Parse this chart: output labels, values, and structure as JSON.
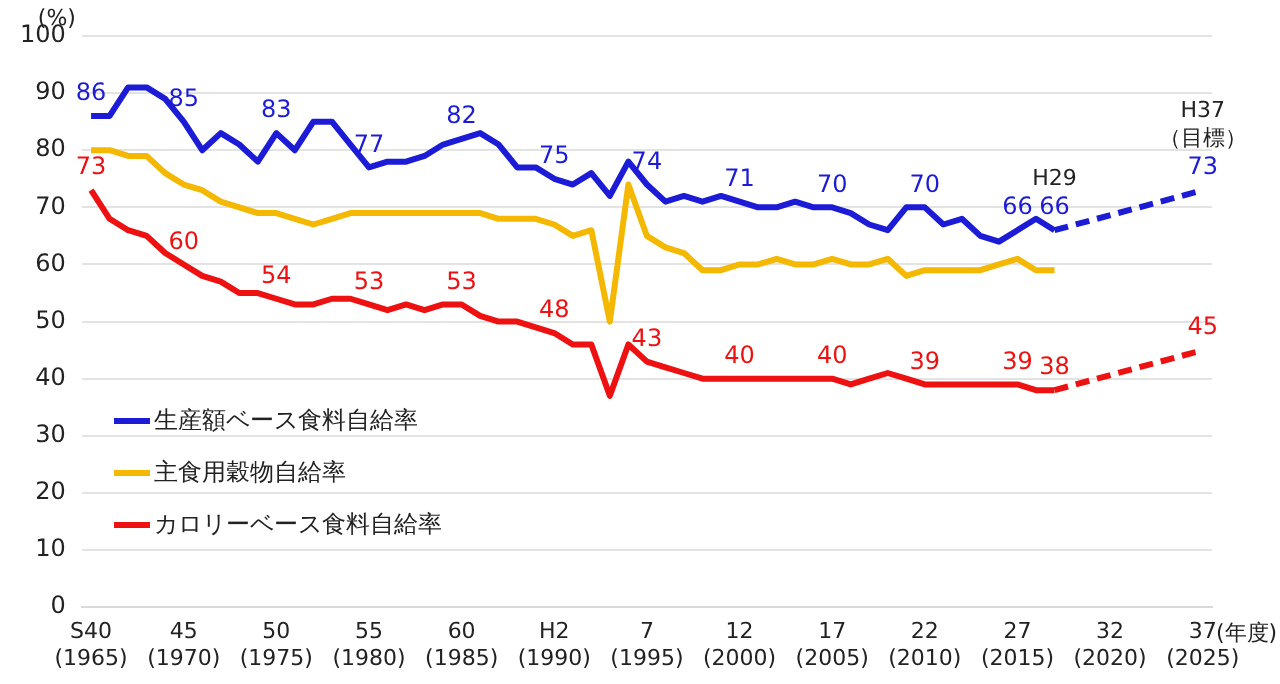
{
  "chart_data": {
    "type": "line",
    "ylabel": "(%)",
    "xlabel": "(年度)",
    "categories": [
      "S40\n(1965)",
      null,
      null,
      null,
      null,
      "45\n(1970)",
      null,
      null,
      null,
      null,
      "50\n(1975)",
      null,
      null,
      null,
      null,
      "55\n(1980)",
      null,
      null,
      null,
      null,
      "60\n(1985)",
      null,
      null,
      null,
      null,
      "H2\n(1990)",
      null,
      null,
      null,
      null,
      "7\n(1995)",
      null,
      null,
      null,
      null,
      "12\n(2000)",
      null,
      null,
      null,
      null,
      "17\n(2005)",
      null,
      null,
      null,
      null,
      "22\n(2010)",
      null,
      null,
      null,
      null,
      "27\n(2015)",
      null,
      null,
      null,
      null,
      "32\n(2020)",
      null,
      null,
      null,
      null,
      "37\n(2025)"
    ],
    "series": [
      {
        "name": "生産額ベース食料自給率",
        "color": "#1c1cd6",
        "values": [
          86,
          86,
          91,
          91,
          89,
          85,
          80,
          83,
          81,
          78,
          83,
          80,
          85,
          85,
          81,
          77,
          78,
          78,
          79,
          81,
          82,
          83,
          81,
          77,
          77,
          75,
          74,
          76,
          72,
          78,
          74,
          71,
          72,
          71,
          72,
          71,
          70,
          70,
          71,
          70,
          70,
          69,
          67,
          66,
          70,
          70,
          67,
          68,
          65,
          64,
          66,
          68,
          66,
          null,
          null,
          null,
          null,
          null,
          null,
          null,
          null
        ],
        "value_labels": [
          "86",
          null,
          null,
          null,
          null,
          "85",
          null,
          null,
          null,
          null,
          "83",
          null,
          null,
          null,
          null,
          "77",
          null,
          null,
          null,
          null,
          "82",
          null,
          null,
          null,
          null,
          "75",
          null,
          null,
          null,
          null,
          "74",
          null,
          null,
          null,
          null,
          "71",
          null,
          null,
          null,
          null,
          "70",
          null,
          null,
          null,
          null,
          "70",
          null,
          null,
          null,
          null,
          "66",
          null,
          "66",
          null,
          null,
          null,
          null,
          null,
          null,
          null,
          null
        ]
      },
      {
        "name": "主食用穀物自給率",
        "color": "#f5b800",
        "values": [
          80,
          80,
          79,
          79,
          76,
          74,
          73,
          71,
          70,
          69,
          69,
          68,
          67,
          68,
          69,
          69,
          69,
          69,
          69,
          69,
          69,
          69,
          68,
          68,
          68,
          67,
          65,
          66,
          50,
          74,
          65,
          63,
          62,
          59,
          59,
          60,
          60,
          61,
          60,
          60,
          61,
          60,
          60,
          61,
          58,
          59,
          59,
          59,
          59,
          60,
          61,
          59,
          59,
          null,
          null,
          null,
          null,
          null,
          null,
          null,
          null
        ]
      },
      {
        "name": "カロリーベース食料自給率",
        "color": "#ee1111",
        "values": [
          73,
          68,
          66,
          65,
          62,
          60,
          58,
          57,
          55,
          55,
          54,
          53,
          53,
          54,
          54,
          53,
          52,
          53,
          52,
          53,
          53,
          51,
          50,
          50,
          49,
          48,
          46,
          46,
          37,
          46,
          43,
          42,
          41,
          40,
          40,
          40,
          40,
          40,
          40,
          40,
          40,
          39,
          40,
          41,
          40,
          39,
          39,
          39,
          39,
          39,
          39,
          38,
          38,
          null,
          null,
          null,
          null,
          null,
          null,
          null,
          null
        ],
        "value_labels": [
          "73",
          null,
          null,
          null,
          null,
          "60",
          null,
          null,
          null,
          null,
          "54",
          null,
          null,
          null,
          null,
          "53",
          null,
          null,
          null,
          null,
          "53",
          null,
          null,
          null,
          null,
          "48",
          null,
          null,
          null,
          null,
          "43",
          null,
          null,
          null,
          null,
          "40",
          null,
          null,
          null,
          null,
          "40",
          null,
          null,
          null,
          null,
          "39",
          null,
          null,
          null,
          null,
          "39",
          null,
          "38",
          null,
          null,
          null,
          null,
          null,
          null,
          null,
          null
        ]
      },
      {
        "color": "#1c1cd6",
        "line_style": "dashed",
        "values": [
          null,
          null,
          null,
          null,
          null,
          null,
          null,
          null,
          null,
          null,
          null,
          null,
          null,
          null,
          null,
          null,
          null,
          null,
          null,
          null,
          null,
          null,
          null,
          null,
          null,
          null,
          null,
          null,
          null,
          null,
          null,
          null,
          null,
          null,
          null,
          null,
          null,
          null,
          null,
          null,
          null,
          null,
          null,
          null,
          null,
          null,
          null,
          null,
          null,
          null,
          null,
          null,
          66,
          null,
          null,
          null,
          null,
          null,
          null,
          null,
          73
        ],
        "value_labels": [
          null,
          null,
          null,
          null,
          null,
          null,
          null,
          null,
          null,
          null,
          null,
          null,
          null,
          null,
          null,
          null,
          null,
          null,
          null,
          null,
          null,
          null,
          null,
          null,
          null,
          null,
          null,
          null,
          null,
          null,
          null,
          null,
          null,
          null,
          null,
          null,
          null,
          null,
          null,
          null,
          null,
          null,
          null,
          null,
          null,
          null,
          null,
          null,
          null,
          null,
          null,
          null,
          null,
          null,
          null,
          null,
          null,
          null,
          null,
          null,
          "73"
        ]
      },
      {
        "color": "#ee1111",
        "line_style": "dashed",
        "values": [
          null,
          null,
          null,
          null,
          null,
          null,
          null,
          null,
          null,
          null,
          null,
          null,
          null,
          null,
          null,
          null,
          null,
          null,
          null,
          null,
          null,
          null,
          null,
          null,
          null,
          null,
          null,
          null,
          null,
          null,
          null,
          null,
          null,
          null,
          null,
          null,
          null,
          null,
          null,
          null,
          null,
          null,
          null,
          null,
          null,
          null,
          null,
          null,
          null,
          null,
          null,
          null,
          38,
          null,
          null,
          null,
          null,
          null,
          null,
          null,
          45
        ],
        "value_labels": [
          null,
          null,
          null,
          null,
          null,
          null,
          null,
          null,
          null,
          null,
          null,
          null,
          null,
          null,
          null,
          null,
          null,
          null,
          null,
          null,
          null,
          null,
          null,
          null,
          null,
          null,
          null,
          null,
          null,
          null,
          null,
          null,
          null,
          null,
          null,
          null,
          null,
          null,
          null,
          null,
          null,
          null,
          null,
          null,
          null,
          null,
          null,
          null,
          null,
          null,
          null,
          null,
          null,
          null,
          null,
          null,
          null,
          null,
          null,
          null,
          "45"
        ]
      }
    ],
    "annotations": [
      {
        "text": "H29",
        "y": 66
      },
      {
        "text": "H37\n（目標）",
        "x": "37\n(2025)",
        "y": 73
      }
    ],
    "ylim": [
      0,
      100
    ],
    "yticks": [
      0,
      10,
      20,
      30,
      40,
      50,
      60,
      70,
      80,
      90,
      100
    ],
    "grid": "y",
    "legend": "bottom left",
    "marker": "none",
    "line_style": "solid"
  }
}
